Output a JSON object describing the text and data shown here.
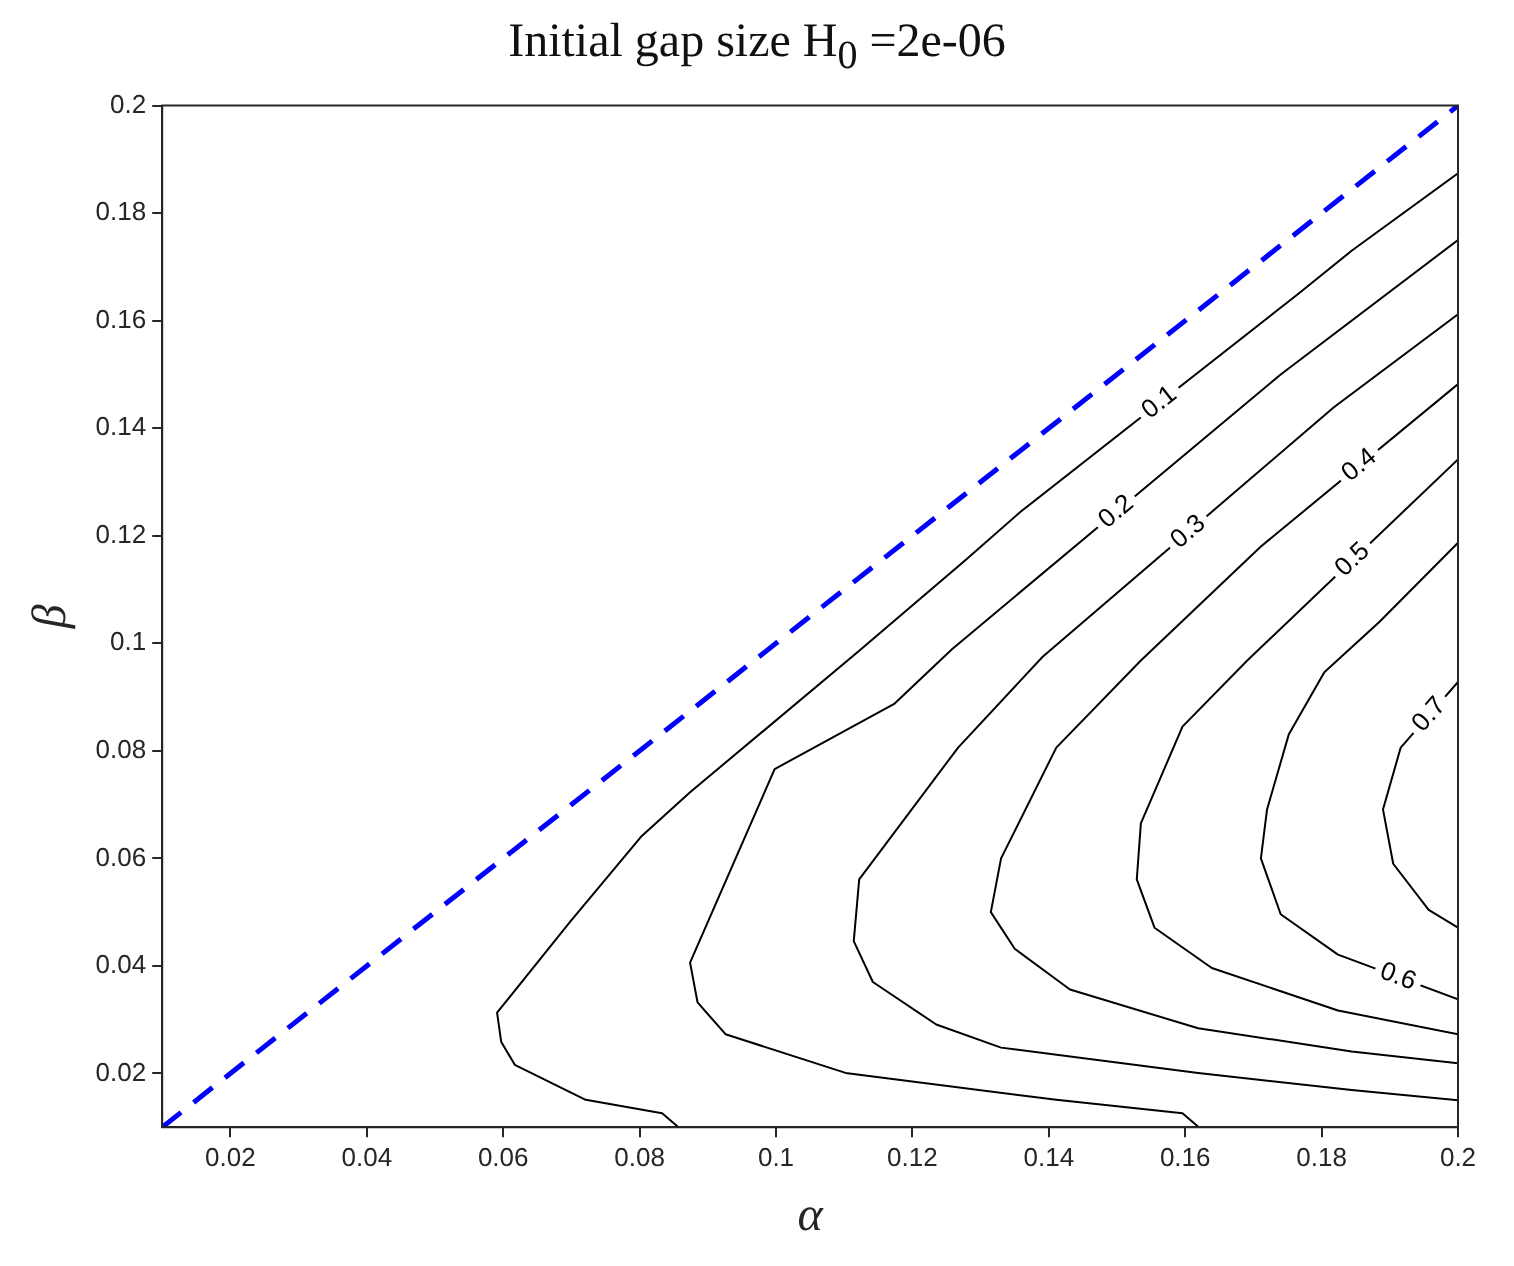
{
  "chart_data": {
    "type": "line",
    "title": "Initial gap size H$_{0}$ =2e-06",
    "xlabel": "α",
    "ylabel": "β",
    "xlim": [
      0.01,
      0.2
    ],
    "ylim": [
      0.01,
      0.2
    ],
    "xticks": [
      0.02,
      0.04,
      0.06,
      0.08,
      0.1,
      0.12,
      0.14,
      0.16,
      0.18,
      0.2
    ],
    "yticks": [
      0.02,
      0.04,
      0.06,
      0.08,
      0.1,
      0.12,
      0.14,
      0.16,
      0.18,
      0.2
    ],
    "grid": false,
    "legend": false,
    "marker": "none",
    "series": [
      {
        "color": "#0000ff",
        "line_style": "dashed",
        "x": [
          0.01,
          0.2
        ],
        "values": [
          0.01,
          0.2
        ]
      },
      {
        "name": "0.1",
        "color": "#000000",
        "line_style": "solid",
        "x": [
          0.2,
          0.1844,
          0.1766,
          0.1359,
          0.1278,
          0.1122,
          0.0874,
          0.0802,
          0.0698,
          0.0591,
          0.0597,
          0.0617,
          0.0721,
          0.0833,
          0.0857
        ],
        "values": [
          0.1874,
          0.173,
          0.165,
          0.1245,
          0.1155,
          0.0986,
          0.0723,
          0.064,
          0.0482,
          0.0313,
          0.0259,
          0.0216,
          0.0151,
          0.0126,
          0.01
        ]
      },
      {
        "name": "0.2",
        "color": "#000000",
        "line_style": "solid",
        "x": [
          0.2,
          0.174,
          0.1258,
          0.1174,
          0.0998,
          0.0874,
          0.0885,
          0.0926,
          0.1102,
          0.1411,
          0.1596,
          0.162
        ],
        "values": [
          0.175,
          0.15,
          0.0989,
          0.0888,
          0.0766,
          0.0406,
          0.0332,
          0.0273,
          0.0201,
          0.0151,
          0.0126,
          0.01
        ]
      },
      {
        "name": "0.3",
        "color": "#000000",
        "line_style": "solid",
        "x": [
          0.2,
          0.1818,
          0.1391,
          0.1267,
          0.1122,
          0.1114,
          0.1142,
          0.1235,
          0.133,
          0.1619,
          0.1844,
          0.2
        ],
        "values": [
          0.1612,
          0.1439,
          0.0975,
          0.0806,
          0.0561,
          0.0446,
          0.037,
          0.0291,
          0.0248,
          0.0201,
          0.0169,
          0.015
        ]
      },
      {
        "name": "0.4",
        "color": "#000000",
        "line_style": "solid",
        "x": [
          0.2,
          0.1711,
          0.1535,
          0.1411,
          0.133,
          0.1315,
          0.135,
          0.1431,
          0.1619,
          0.1844,
          0.2
        ],
        "values": [
          0.1482,
          0.118,
          0.0968,
          0.0806,
          0.06,
          0.05,
          0.0432,
          0.0356,
          0.0284,
          0.0241,
          0.0219
        ]
      },
      {
        "name": "0.5",
        "color": "#000000",
        "line_style": "solid",
        "x": [
          0.2,
          0.1691,
          0.1596,
          0.1535,
          0.1529,
          0.1555,
          0.1639,
          0.1824,
          0.2
        ],
        "values": [
          0.1342,
          0.0968,
          0.0845,
          0.0665,
          0.0561,
          0.0471,
          0.0396,
          0.0317,
          0.0273
        ]
      },
      {
        "name": "0.6",
        "color": "#000000",
        "line_style": "solid",
        "x": [
          0.2,
          0.1885,
          0.1804,
          0.1752,
          0.172,
          0.1711,
          0.174,
          0.1824,
          0.2
        ],
        "values": [
          0.1187,
          0.104,
          0.0946,
          0.0831,
          0.0691,
          0.06,
          0.0496,
          0.0421,
          0.0338
        ]
      },
      {
        "name": "0.7",
        "color": "#000000",
        "line_style": "solid",
        "x": [
          0.2,
          0.1916,
          0.189,
          0.1905,
          0.1957,
          0.2
        ],
        "values": [
          0.0928,
          0.0806,
          0.0691,
          0.059,
          0.0504,
          0.0471
        ]
      }
    ]
  }
}
